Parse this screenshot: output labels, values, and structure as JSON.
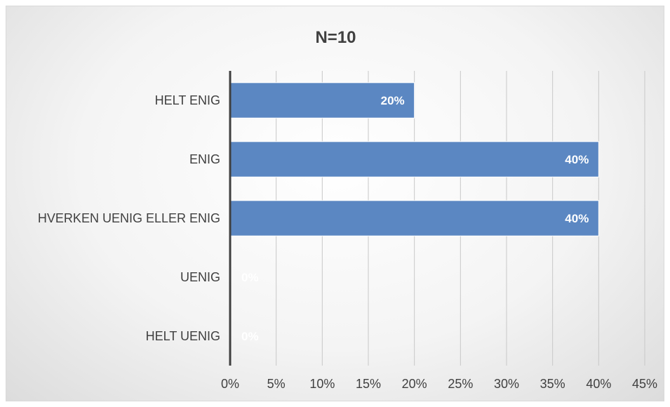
{
  "chart_data": {
    "type": "bar",
    "orientation": "horizontal",
    "title": "N=10",
    "categories": [
      "HELT ENIG",
      "ENIG",
      "HVERKEN UENIG ELLER ENIG",
      "UENIG",
      "HELT UENIG"
    ],
    "values": [
      20,
      40,
      40,
      0,
      0
    ],
    "data_labels": [
      "20%",
      "40%",
      "40%",
      "0%",
      "0%"
    ],
    "xlim": [
      0,
      45
    ],
    "xticks": [
      0,
      5,
      10,
      15,
      20,
      25,
      30,
      35,
      40,
      45
    ],
    "xtick_labels": [
      "0%",
      "5%",
      "10%",
      "15%",
      "20%",
      "25%",
      "30%",
      "35%",
      "40%",
      "45%"
    ],
    "grid": true,
    "legend": "none",
    "bar_color": "#5b87c2",
    "title_color": "#404040"
  }
}
